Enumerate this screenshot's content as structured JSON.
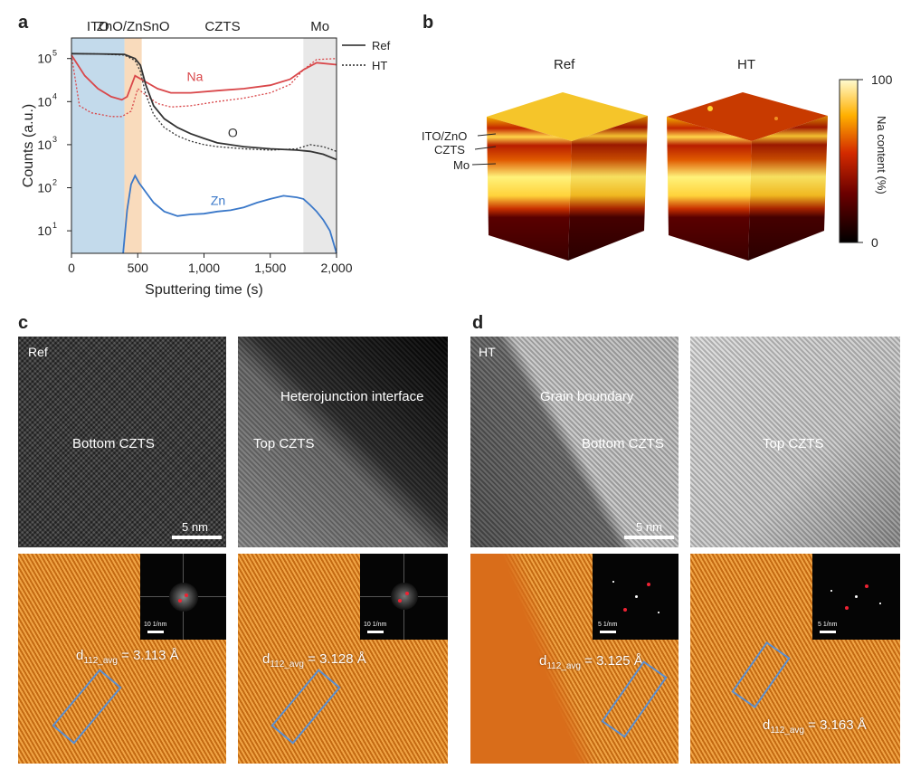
{
  "panels": {
    "a": {
      "label": "a"
    },
    "b": {
      "label": "b"
    },
    "c": {
      "label": "c"
    },
    "d": {
      "label": "d"
    }
  },
  "chart_data": {
    "type": "line",
    "title": "",
    "xlabel": "Sputtering time (s)",
    "ylabel": "Counts (a.u.)",
    "xlim": [
      0,
      2000
    ],
    "ylim": [
      3,
      300000
    ],
    "yscale": "log",
    "xticks": [
      0,
      500,
      1000,
      1500,
      2000
    ],
    "xtick_labels": [
      "0",
      "500",
      "1,000",
      "1,500",
      "2,000"
    ],
    "yticks": [
      10,
      100,
      1000,
      10000,
      100000
    ],
    "ytick_labels": [
      "10",
      "10",
      "10",
      "10",
      "10"
    ],
    "ytick_exponents": [
      "1",
      "2",
      "3",
      "4",
      "5"
    ],
    "regions": [
      {
        "label": "ITO",
        "from": 0,
        "to": 400,
        "color": "#b9d3e8"
      },
      {
        "label": "ZnO/ZnSnO",
        "from": 400,
        "to": 530,
        "color": "#f8d5b0"
      },
      {
        "label": "CZTS",
        "from": 530,
        "to": 1750,
        "color": ""
      },
      {
        "label": "Mo",
        "from": 1750,
        "to": 2000,
        "color": "#e4e4e4"
      }
    ],
    "legend": {
      "position": "top-right-outside",
      "entries": [
        {
          "label": "Ref",
          "style": "solid"
        },
        {
          "label": "HT",
          "style": "dotted"
        }
      ]
    },
    "series_labels": [
      {
        "text": "Na",
        "x": 870,
        "y": 30000,
        "color": "#d9474a"
      },
      {
        "text": "O",
        "x": 1180,
        "y": 1500,
        "color": "#333333"
      },
      {
        "text": "Zn",
        "x": 1050,
        "y": 40,
        "color": "#3a78c9"
      }
    ],
    "series": [
      {
        "element": "Na",
        "condition": "Ref",
        "color": "#d9474a",
        "dash": "",
        "x": [
          0,
          100,
          200,
          300,
          380,
          420,
          480,
          550,
          650,
          750,
          900,
          1100,
          1300,
          1500,
          1650,
          1750,
          1850,
          2000
        ],
        "y": [
          120000,
          40000,
          20000,
          13000,
          11000,
          13000,
          40000,
          30000,
          20000,
          16000,
          16000,
          18000,
          20000,
          24000,
          33000,
          55000,
          80000,
          72000
        ]
      },
      {
        "element": "Na",
        "condition": "HT",
        "color": "#d9474a",
        "dash": "2,2",
        "x": [
          0,
          60,
          150,
          300,
          380,
          450,
          500,
          550,
          650,
          750,
          900,
          1100,
          1300,
          1500,
          1650,
          1750,
          1850,
          2000
        ],
        "y": [
          120000,
          8000,
          5500,
          4500,
          4500,
          6000,
          20000,
          15000,
          9000,
          7500,
          8000,
          10000,
          12000,
          16000,
          25000,
          55000,
          95000,
          100000
        ]
      },
      {
        "element": "O",
        "condition": "Ref",
        "color": "#333333",
        "dash": "",
        "x": [
          0,
          200,
          400,
          480,
          520,
          560,
          620,
          700,
          800,
          900,
          1000,
          1100,
          1300,
          1500,
          1700,
          1800,
          1900,
          2000
        ],
        "y": [
          130000,
          128000,
          125000,
          100000,
          70000,
          25000,
          8000,
          4000,
          2500,
          1800,
          1400,
          1100,
          900,
          800,
          750,
          700,
          600,
          450
        ]
      },
      {
        "element": "O",
        "condition": "HT",
        "color": "#333333",
        "dash": "2,2",
        "x": [
          0,
          200,
          400,
          480,
          520,
          560,
          620,
          700,
          800,
          900,
          1000,
          1100,
          1300,
          1500,
          1700,
          1800,
          1900,
          2000
        ],
        "y": [
          130000,
          128000,
          120000,
          90000,
          50000,
          15000,
          5000,
          2500,
          1600,
          1200,
          1000,
          900,
          800,
          750,
          800,
          1000,
          900,
          700
        ]
      },
      {
        "element": "Zn",
        "condition": "Ref",
        "color": "#3a78c9",
        "dash": "",
        "x": [
          390,
          420,
          450,
          480,
          510,
          560,
          620,
          700,
          800,
          900,
          1000,
          1100,
          1200,
          1300,
          1400,
          1500,
          1600,
          1700,
          1750,
          1800,
          1850,
          1900,
          1950,
          2000
        ],
        "y": [
          3,
          30,
          120,
          190,
          130,
          80,
          45,
          28,
          22,
          24,
          25,
          28,
          30,
          35,
          45,
          55,
          65,
          60,
          55,
          40,
          28,
          18,
          10,
          3
        ]
      }
    ]
  },
  "cubes": {
    "ref_label": "Ref",
    "ht_label": "HT",
    "layer_labels": [
      "ITO/ZnO",
      "CZTS",
      "Mo"
    ],
    "colorbar": {
      "max_label": "100",
      "min_label": "0",
      "title": "Na content (%)"
    }
  },
  "tem_c": {
    "corner": "Ref",
    "img1_label": "Bottom CZTS",
    "img2_label1": "Heterojunction interface",
    "img2_label2": "Top CZTS",
    "scale": "5 nm",
    "fft_scale1": "10 1/nm",
    "fft_scale2": "10 1/nm",
    "d1_main": "d",
    "d1_sub": "112_avg",
    "d1_val": " = 3.113 Å",
    "d2_main": "d",
    "d2_sub": "112_avg",
    "d2_val": " = 3.128 Å"
  },
  "tem_d": {
    "corner": "HT",
    "img1_label1": "Grain boundary",
    "img1_label2": "Bottom CZTS",
    "img2_label": "Top CZTS",
    "scale": "5 nm",
    "fft_scale1": "5 1/nm",
    "fft_scale2": "5 1/nm",
    "d1_main": "d",
    "d1_sub": "112_avg",
    "d1_val": " = 3.125 Å",
    "d2_main": "d",
    "d2_sub": "112_avg",
    "d2_val": " = 3.163 Å"
  }
}
